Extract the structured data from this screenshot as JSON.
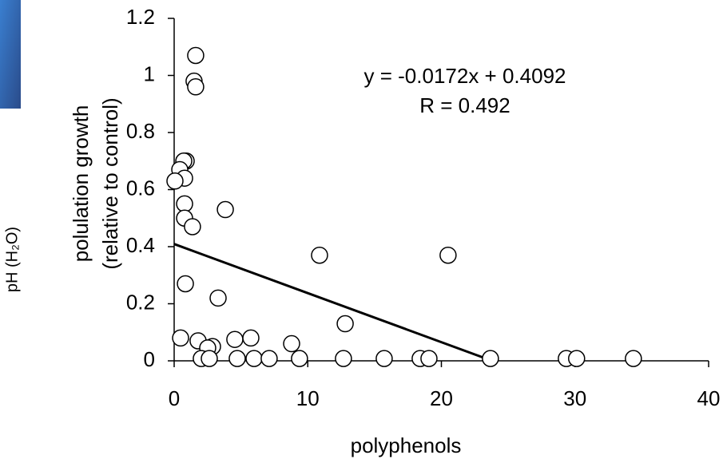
{
  "chart_data": {
    "type": "scatter",
    "xlabel": "polyphenols",
    "ylabel": [
      "polulation growth",
      "(relative to control)"
    ],
    "annotations": [
      "y = -0.0172x + 0.4092",
      "R = 0.492"
    ],
    "side_text": "pH (H₂O)",
    "x": [
      1.61,
      1.49,
      1.61,
      0.9,
      0.72,
      0.42,
      0.78,
      0.06,
      0.78,
      0.78,
      1.37,
      3.83,
      0.84,
      3.29,
      10.88,
      20.5,
      12.8,
      0.48,
      1.79,
      2.87,
      2.51,
      4.54,
      5.74,
      8.79,
      2.03,
      2.63,
      4.72,
      5.98,
      7.11,
      9.38,
      12.67,
      15.72,
      18.41,
      19.07,
      23.67,
      29.35,
      30.12,
      34.37
    ],
    "values": [
      1.07,
      0.98,
      0.96,
      0.7,
      0.7,
      0.67,
      0.64,
      0.63,
      0.55,
      0.5,
      0.47,
      0.53,
      0.27,
      0.22,
      0.37,
      0.37,
      0.13,
      0.08,
      0.07,
      0.05,
      0.045,
      0.075,
      0.08,
      0.06,
      0.008,
      0.008,
      0.008,
      0.008,
      0.008,
      0.008,
      0.008,
      0.008,
      0.008,
      0.008,
      0.008,
      0.008,
      0.008,
      0.008
    ],
    "trendline": {
      "x": [
        0,
        23.8
      ],
      "y": [
        0.4092,
        0.0
      ]
    },
    "marker_color": "#ffffff",
    "edge_color": "#000000",
    "xlim": [
      0,
      40
    ],
    "xticks": [
      0,
      10,
      20,
      30,
      40
    ],
    "ylim": [
      0,
      1.2
    ],
    "yticks": [
      0,
      0.2,
      0.4,
      0.6,
      0.8,
      1,
      1.2
    ],
    "grid": false
  }
}
